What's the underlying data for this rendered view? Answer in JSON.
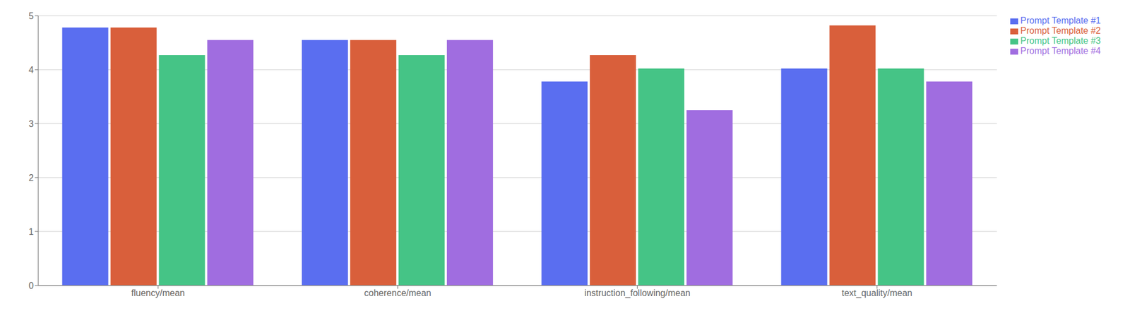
{
  "chart_data": {
    "type": "bar",
    "categories": [
      "fluency/mean",
      "coherence/mean",
      "instruction_following/mean",
      "text_quality/mean"
    ],
    "series": [
      {
        "name": "Prompt Template #1",
        "color": "#5a6ef0",
        "values": [
          4.78,
          4.55,
          3.78,
          4.02
        ]
      },
      {
        "name": "Prompt Template #2",
        "color": "#d95f3b",
        "values": [
          4.78,
          4.55,
          4.27,
          4.82
        ]
      },
      {
        "name": "Prompt Template #3",
        "color": "#45c486",
        "values": [
          4.27,
          4.27,
          4.02,
          4.02
        ]
      },
      {
        "name": "Prompt Template #4",
        "color": "#a06de0",
        "values": [
          4.55,
          4.55,
          3.25,
          3.78
        ]
      }
    ],
    "ylim": [
      0,
      5
    ],
    "yticks": [
      0,
      1,
      2,
      3,
      4,
      5
    ],
    "grid": true,
    "legend": "right"
  }
}
